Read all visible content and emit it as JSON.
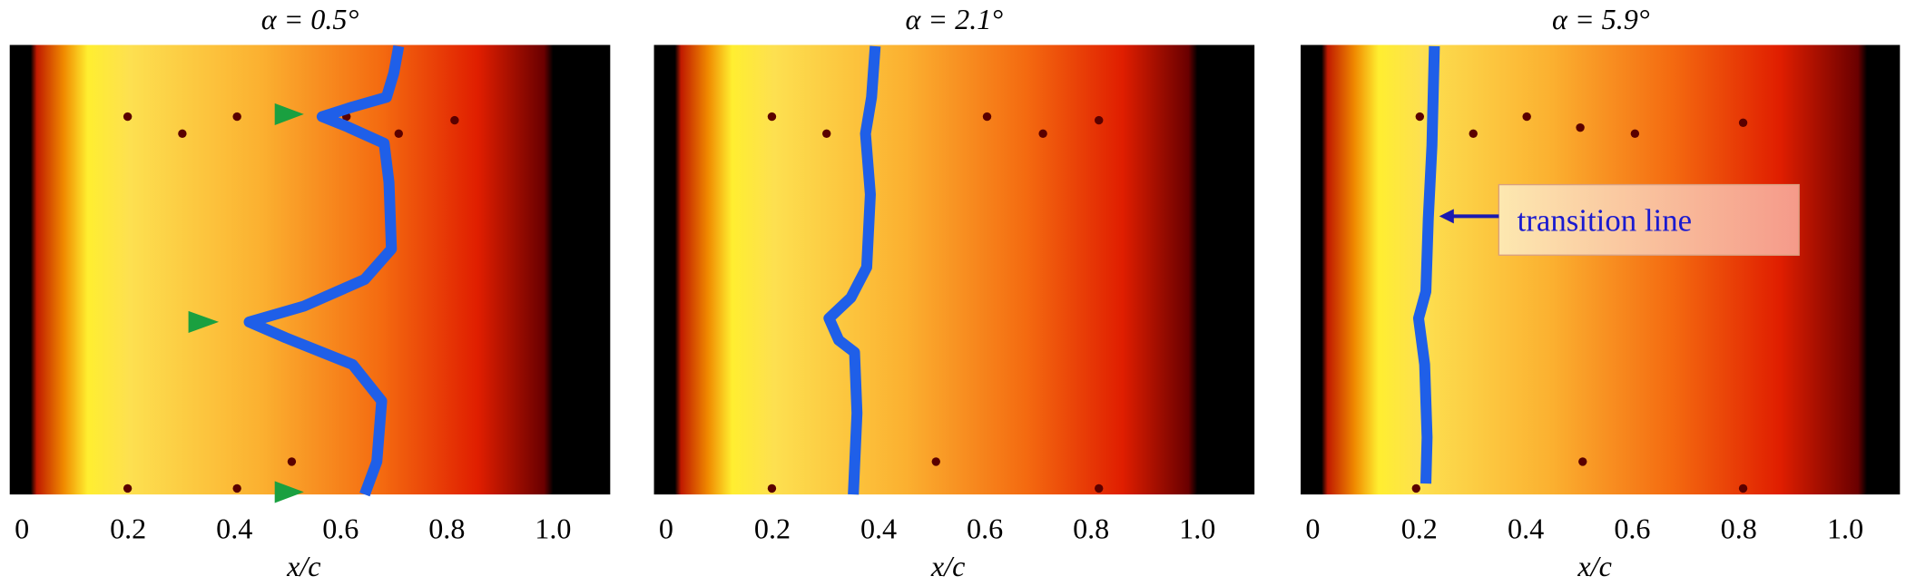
{
  "panels": [
    {
      "title": "α = 0.5°",
      "xticks": [
        "0",
        "0.2",
        "0.4",
        "0.6",
        "0.8",
        "1.0"
      ],
      "xlabel": "x/c"
    },
    {
      "title": "α = 2.1°",
      "xticks": [
        "0",
        "0.2",
        "0.4",
        "0.6",
        "0.8",
        "1.0"
      ],
      "xlabel": "x/c"
    },
    {
      "title": "α = 5.9°",
      "xticks": [
        "0",
        "0.2",
        "0.4",
        "0.6",
        "0.8",
        "1.0"
      ],
      "xlabel": "x/c"
    }
  ],
  "annotation": "transition line"
}
